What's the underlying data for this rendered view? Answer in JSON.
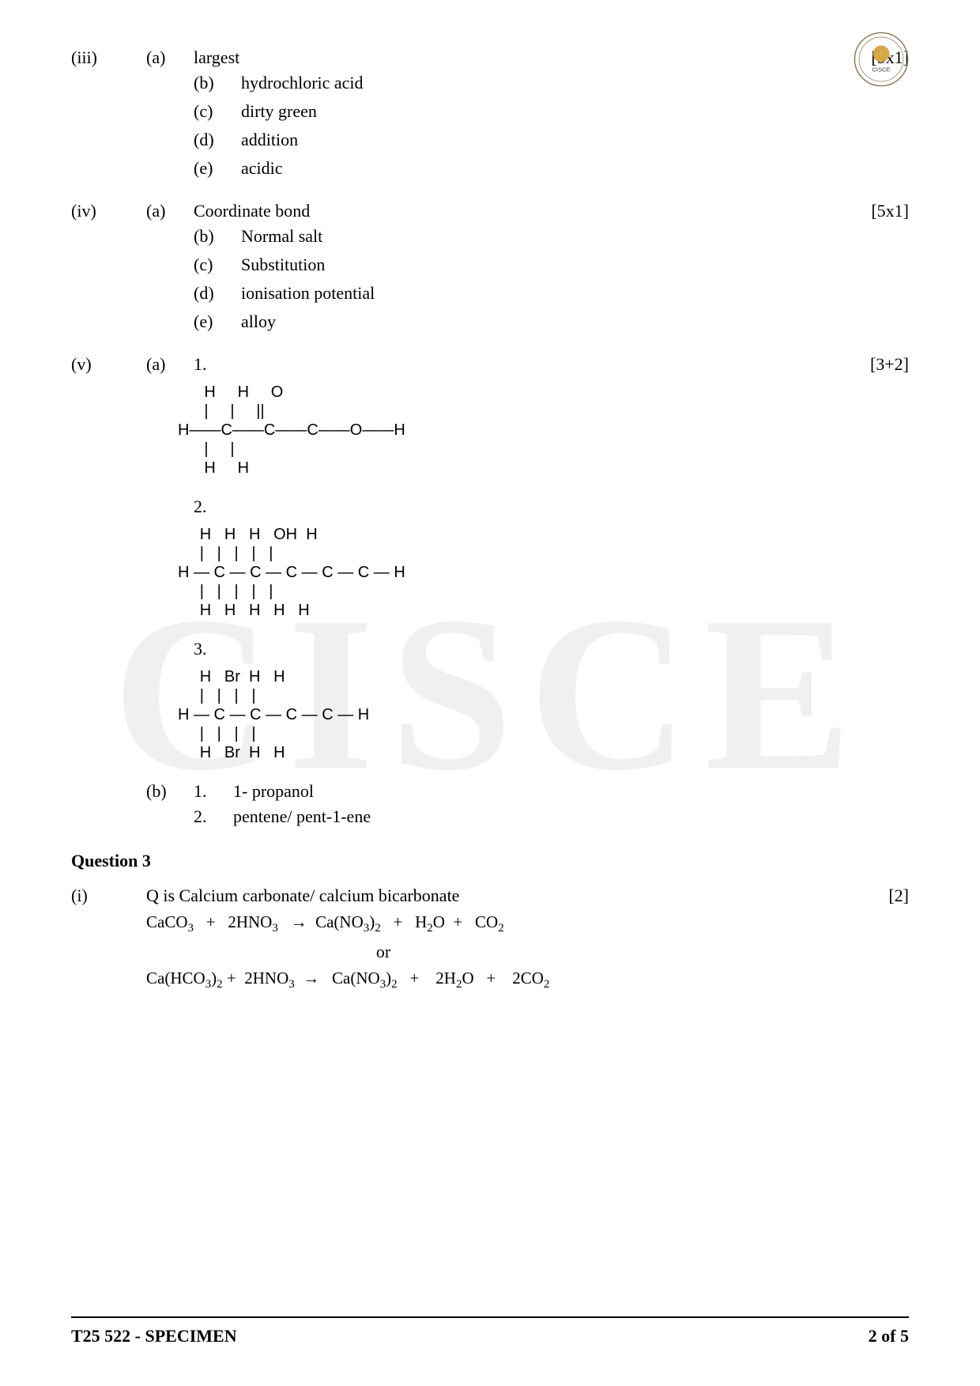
{
  "logo": {
    "label": "CISCE"
  },
  "q_iii": {
    "roman": "(iii)",
    "marks": "[5x1]",
    "items": [
      {
        "letter": "(a)",
        "text": "largest"
      },
      {
        "letter": "(b)",
        "text": "hydrochloric acid"
      },
      {
        "letter": "(c)",
        "text": "dirty green"
      },
      {
        "letter": "(d)",
        "text": "addition"
      },
      {
        "letter": "(e)",
        "text": "acidic"
      }
    ]
  },
  "q_iv": {
    "roman": "(iv)",
    "marks": "[5x1]",
    "items": [
      {
        "letter": "(a)",
        "text": "Coordinate bond"
      },
      {
        "letter": "(b)",
        "text": "Normal salt"
      },
      {
        "letter": "(c)",
        "text": "Substitution"
      },
      {
        "letter": "(d)",
        "text": "ionisation potential"
      },
      {
        "letter": "(e)",
        "text": "alloy"
      }
    ]
  },
  "q_v": {
    "roman": "(v)",
    "marks": "[3+2]",
    "a_label": "(a)",
    "b_label": "(b)",
    "a": {
      "n1": "1.",
      "n2": "2.",
      "n3": "3.",
      "struct1": "      H     H     O\n      |     |     ||\nH——C——C——C——O——H\n      |     |\n      H     H",
      "struct2": "     H   H   H   OH  H\n     |   |   |   |   |\nH — C — C — C — C — C — H\n     |   |   |   |   |\n     H   H   H   H   H",
      "struct3": "     H   Br  H   H\n     |   |   |   |\nH — C — C — C — C — H\n     |   |   |   |\n     H   Br  H   H"
    },
    "b": {
      "n1": "1.",
      "t1": "1- propanol",
      "n2": "2.",
      "t2": "pentene/ pent-1-ene"
    }
  },
  "q3": {
    "heading": "Question 3",
    "i": {
      "roman": "(i)",
      "text": "Q is Calcium carbonate/ calcium bicarbonate",
      "marks": "[2]",
      "eq1_html": "CaCO<sub>3</sub>&nbsp;&nbsp; + &nbsp;&nbsp;2HNO<sub>3</sub>&nbsp;&nbsp; → &nbsp;Ca(NO<sub>3</sub>)<sub>2</sub>&nbsp;&nbsp; + &nbsp;&nbsp;H<sub>2</sub>O &nbsp;+ &nbsp;&nbsp;CO<sub>2</sub>",
      "or": "or",
      "eq2_html": "Ca(HCO<sub>3</sub>)<sub>2</sub> + &nbsp;2HNO<sub>3</sub>&nbsp; → &nbsp;&nbsp;Ca(NO<sub>3</sub>)<sub>2</sub>&nbsp;&nbsp; + &nbsp;&nbsp;&nbsp;2H<sub>2</sub>O&nbsp;&nbsp; + &nbsp;&nbsp;&nbsp;2CO<sub>2</sub>"
    }
  },
  "footer": {
    "left": "T25 522 - SPECIMEN",
    "right": "2 of 5"
  }
}
